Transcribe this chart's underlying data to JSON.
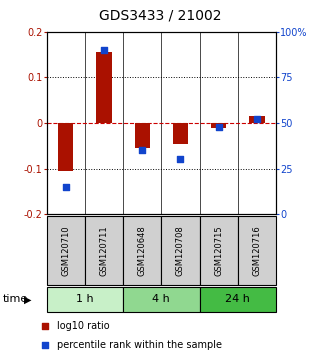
{
  "title": "GDS3433 / 21002",
  "samples": [
    "GSM120710",
    "GSM120711",
    "GSM120648",
    "GSM120708",
    "GSM120715",
    "GSM120716"
  ],
  "log10_ratio": [
    -0.105,
    0.155,
    -0.055,
    -0.045,
    -0.01,
    0.015
  ],
  "percentile_rank": [
    15,
    90,
    35,
    30,
    48,
    52
  ],
  "time_groups": [
    {
      "label": "1 h",
      "start": 0,
      "end": 2,
      "color": "#c8f0c8"
    },
    {
      "label": "4 h",
      "start": 2,
      "end": 4,
      "color": "#90d890"
    },
    {
      "label": "24 h",
      "start": 4,
      "end": 6,
      "color": "#44bb44"
    }
  ],
  "bar_color": "#aa1100",
  "dot_color": "#1144cc",
  "ylim_left": [
    -0.2,
    0.2
  ],
  "ylim_right": [
    0,
    100
  ],
  "yticks_left": [
    -0.2,
    -0.1,
    0,
    0.1,
    0.2
  ],
  "yticks_right": [
    0,
    25,
    50,
    75,
    100
  ],
  "ytick_labels_left": [
    "-0.2",
    "-0.1",
    "0",
    "0.1",
    "0.2"
  ],
  "ytick_labels_right": [
    "0",
    "25",
    "50",
    "75",
    "100%"
  ],
  "legend_red": "log10 ratio",
  "legend_blue": "percentile rank within the sample",
  "xlabel_time": "time",
  "bar_width": 0.4,
  "dot_size": 22,
  "sample_box_color": "#d0d0d0",
  "sample_label_fontsize": 6,
  "time_label_fontsize": 8,
  "title_fontsize": 10,
  "axis_fontsize": 7,
  "legend_fontsize": 7
}
